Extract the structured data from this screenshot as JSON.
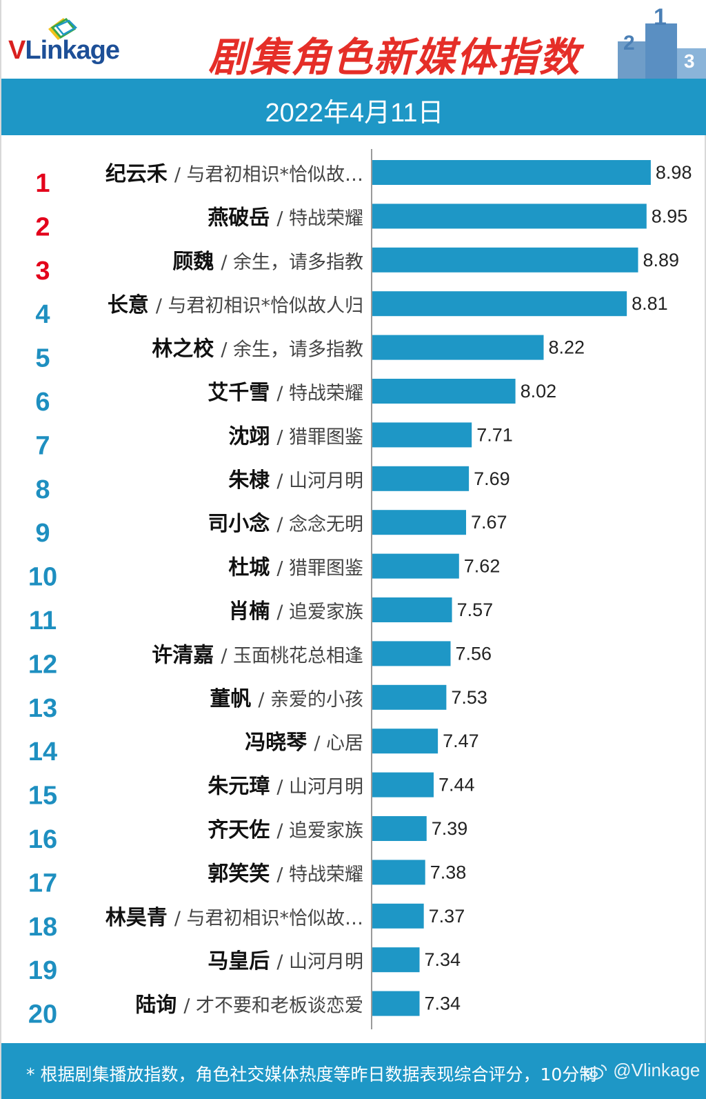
{
  "header": {
    "logo_v": "V",
    "logo_rest": "Linkage",
    "title": "剧集角色新媒体指数"
  },
  "banner": {
    "date": "2022年4月11日"
  },
  "colors": {
    "accent": "#1e97c6",
    "bar": "#1e97c6",
    "top_rank": "#e3001b",
    "rank": "#1e8fc0",
    "title": "#e52e28",
    "logo_red": "#d9201f",
    "logo_blue": "#1d4f97"
  },
  "icons": [
    "vlinkage-logo-mark-icon",
    "podium-icon",
    "weibo-icon"
  ],
  "chart_data": {
    "type": "bar",
    "orientation": "horizontal",
    "rank_labels": [
      "1",
      "2",
      "3",
      "4",
      "5",
      "6",
      "7",
      "8",
      "9",
      "10",
      "11",
      "12",
      "13",
      "14",
      "15",
      "16",
      "17",
      "18",
      "19",
      "20"
    ],
    "character_labels": [
      "纪云禾",
      "燕破岳",
      "顾魏",
      "长意",
      "林之校",
      "艾千雪",
      "沈翊",
      "朱棣",
      "司小念",
      "杜城",
      "肖楠",
      "许清嘉",
      "董帆",
      "冯晓琴",
      "朱元璋",
      "齐天佐",
      "郭笑笑",
      "林昊青",
      "马皇后",
      "陆询"
    ],
    "drama_labels": [
      "/ 与君初相识*恰似故…",
      "/ 特战荣耀",
      "/ 余生，请多指教",
      "/ 与君初相识*恰似故人归",
      "/ 余生，请多指教",
      "/ 特战荣耀",
      "/ 猎罪图鉴",
      "/ 山河月明",
      "/ 念念无明",
      "/ 猎罪图鉴",
      "/ 追爱家族",
      "/ 玉面桃花总相逢",
      "/ 亲爱的小孩",
      "/ 心居",
      "/ 山河月明",
      "/ 追爱家族",
      "/ 特战荣耀",
      "/ 与君初相识*恰似故…",
      "/ 山河月明",
      "/ 才不要和老板谈恋爱"
    ],
    "values": [
      8.98,
      8.95,
      8.89,
      8.81,
      8.22,
      8.02,
      7.71,
      7.69,
      7.67,
      7.62,
      7.57,
      7.56,
      7.53,
      7.47,
      7.44,
      7.39,
      7.38,
      7.37,
      7.34,
      7.34
    ],
    "value_labels": [
      "8.98",
      "8.95",
      "8.89",
      "8.81",
      "8.22",
      "8.02",
      "7.71",
      "7.69",
      "7.67",
      "7.62",
      "7.57",
      "7.56",
      "7.53",
      "7.47",
      "7.44",
      "7.39",
      "7.38",
      "7.37",
      "7.34",
      "7.34"
    ],
    "xlim": [
      7.0,
      9.0
    ],
    "grid": false,
    "legend": "none"
  },
  "footer": {
    "note": "* 根据剧集播放指数，角色社交媒体热度等昨日数据表现综合评分，10分制",
    "watermark": "@Vlinkage"
  }
}
